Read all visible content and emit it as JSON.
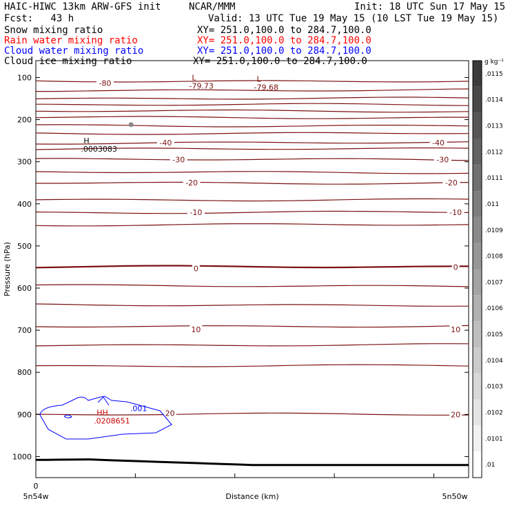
{
  "header": {
    "model": "HAIC-HIWC 13km ARW-GFS init",
    "org": "NCAR/MMM",
    "init": "Init: 18 UTC Sun 17 May 15",
    "fcst": "Fcst:   43 h",
    "valid": "Valid: 13 UTC Tue 19 May 15 (10 LST Tue 19 May 15)",
    "fields": [
      {
        "name": "Snow mixing ratio",
        "xy": "XY= 251.0,100.0 to 284.7,100.0",
        "color": "#000000"
      },
      {
        "name": "Rain water mixing ratio",
        "xy": "XY= 251.0,100.0 to 284.7,100.0",
        "color": "#ff0000"
      },
      {
        "name": "Cloud water mixing ratio",
        "xy": "XY= 251.0,100.0 to 284.7,100.0",
        "color": "#0000ff"
      },
      {
        "name": "Cloud ice mixing ratio",
        "xy": "XY= 251.0,100.0 to 284.7,100.0",
        "color": "#000000"
      }
    ]
  },
  "chart_data": {
    "type": "contour-cross-section",
    "ylabel": "Pressure (hPa)",
    "xlabel": "Distance (km)",
    "x_left_label": "5n54w",
    "x_right_label": "5n50w",
    "x_zero_label": "0",
    "y_ticks": [
      100,
      200,
      300,
      400,
      500,
      600,
      700,
      800,
      900,
      1000
    ],
    "ylim": [
      60,
      1050
    ],
    "temperature_contours": {
      "color": "#7a1010",
      "levels": [
        -80,
        -75,
        -70,
        -65,
        -60,
        -55,
        -50,
        -45,
        -40,
        -35,
        -30,
        -25,
        -20,
        -15,
        -10,
        -5,
        0,
        5,
        10,
        15,
        20,
        25,
        30
      ],
      "pressure_at_level": [
        108,
        130,
        150,
        165,
        180,
        195,
        214,
        232,
        255,
        270,
        295,
        325,
        350,
        390,
        420,
        450,
        550,
        595,
        640,
        690,
        735,
        785,
        900
      ],
      "labels": [
        {
          "text": "-80",
          "x": 0.16,
          "p": 113
        },
        {
          "text": "-40",
          "x": 0.3,
          "p": 255
        },
        {
          "text": "-40",
          "x": 0.93,
          "p": 255
        },
        {
          "text": "-30",
          "x": 0.33,
          "p": 295
        },
        {
          "text": "-30",
          "x": 0.94,
          "p": 295
        },
        {
          "text": "-20",
          "x": 0.36,
          "p": 350
        },
        {
          "text": "-20",
          "x": 0.96,
          "p": 350
        },
        {
          "text": "-10",
          "x": 0.37,
          "p": 420
        },
        {
          "text": "-10",
          "x": 0.97,
          "p": 420
        },
        {
          "text": "0",
          "x": 0.37,
          "p": 553
        },
        {
          "text": "0",
          "x": 0.97,
          "p": 550
        },
        {
          "text": "10",
          "x": 0.37,
          "p": 698
        },
        {
          "text": "10",
          "x": 0.97,
          "p": 698
        },
        {
          "text": "20",
          "x": 0.31,
          "p": 897
        },
        {
          "text": "20",
          "x": 0.97,
          "p": 900
        }
      ]
    },
    "extrema": [
      {
        "type": "L",
        "value": "-79.73",
        "x": 0.37,
        "p": 110
      },
      {
        "type": "L",
        "value": "-79.68",
        "x": 0.52,
        "p": 113
      },
      {
        "type": "H",
        "value": ".0003083",
        "x": 0.12,
        "p": 260
      },
      {
        "type": "HH",
        "value": ".0208651",
        "x": 0.15,
        "p": 905
      }
    ],
    "cloud_water_contour": {
      "level": ".001",
      "color": "#0000ff"
    },
    "surface_line": {
      "color": "#000000"
    },
    "colorbar": {
      "unit": "g kg⁻¹",
      "labels": [
        ".0115",
        ".0114",
        ".0113",
        ".0112",
        ".0111",
        ".011",
        ".0109",
        ".0108",
        ".0107",
        ".0106",
        ".0105",
        ".0104",
        ".0103",
        ".0102",
        ".0101",
        ".01"
      ]
    }
  }
}
